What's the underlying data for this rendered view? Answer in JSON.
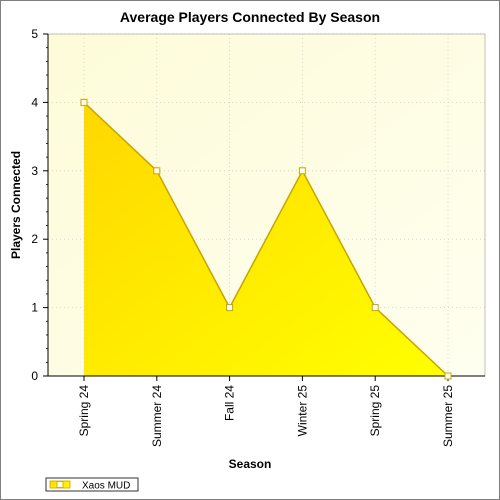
{
  "chart_data": {
    "type": "area",
    "title": "Average Players Connected By Season",
    "xlabel": "Season",
    "ylabel": "Players Connected",
    "categories": [
      "Spring 24",
      "Summer 24",
      "Fall 24",
      "Winter 25",
      "Spring 25",
      "Summer 25"
    ],
    "series": [
      {
        "name": "Xaos MUD",
        "values": [
          4,
          3,
          1,
          3,
          1,
          0
        ]
      }
    ],
    "ylim": [
      0,
      5
    ],
    "yticks": [
      0,
      1,
      2,
      3,
      4,
      5
    ],
    "grid": true,
    "legend_position": "bottom-left",
    "colors": {
      "fill_top": "#ffd700",
      "fill_bottom": "#ffff00",
      "line": "#c8a400",
      "plot_bg_left": "#fdfbd8",
      "plot_bg_right": "#fffff0",
      "marker_fill": "#ffffff"
    }
  }
}
